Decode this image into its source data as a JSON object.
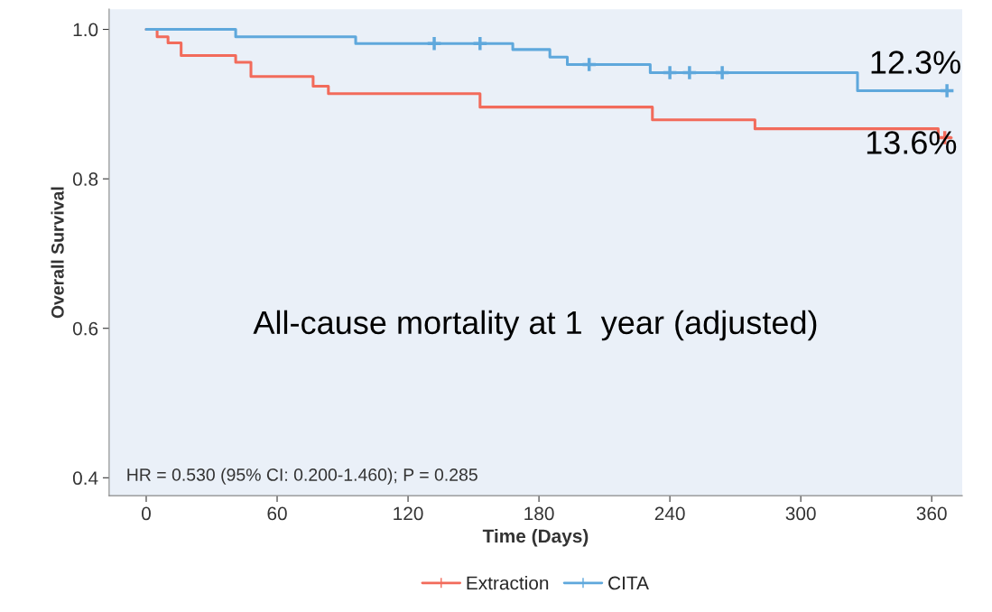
{
  "chart_data": {
    "type": "step",
    "xlabel": "Time (Days)",
    "ylabel": "Overall Survival",
    "xlim": [
      -17,
      374
    ],
    "ylim": [
      0.376,
      1.027
    ],
    "xticks": [
      0,
      60,
      120,
      180,
      240,
      300,
      360
    ],
    "yticks": [
      {
        "value": 0.4,
        "label": "0.4"
      },
      {
        "value": 0.6,
        "label": "0.6"
      },
      {
        "value": 0.8,
        "label": "0.8"
      },
      {
        "value": 1.0,
        "label": "1.0"
      }
    ],
    "grid": false,
    "legend": "bottom",
    "line_style": "solid",
    "series": [
      {
        "name": "Extraction",
        "color": "#f26b5b",
        "x": [
          0,
          5,
          10,
          16,
          41,
          48,
          76.5,
          83.5,
          153,
          232,
          279,
          363,
          369
        ],
        "values": [
          1.0,
          0.99,
          0.982,
          0.965,
          0.956,
          0.937,
          0.924,
          0.914,
          0.896,
          0.879,
          0.867,
          0.855,
          0.855
        ]
      },
      {
        "name": "CITA",
        "color": "#5fa8dc",
        "x": [
          0,
          41,
          96,
          168,
          185,
          193,
          231,
          326,
          367
        ],
        "values": [
          1.0,
          0.99,
          0.981,
          0.973,
          0.963,
          0.953,
          0.942,
          0.918,
          0.918
        ]
      },
      {
        "type": "scatter",
        "color": "#f26b5b",
        "marker": "cross",
        "x": [
          366
        ],
        "values": [
          0.855
        ]
      },
      {
        "type": "scatter",
        "color": "#5fa8dc",
        "marker": "cross",
        "x": [
          132,
          153,
          203,
          240,
          249,
          264,
          367
        ],
        "values": [
          0.981,
          0.981,
          0.953,
          0.942,
          0.942,
          0.942,
          0.918
        ]
      }
    ],
    "annotations": [
      "12.3%",
      "13.6%",
      "All-cause mortality at 1  year (adjusted)",
      "HR = 0.530 (95% CI: 0.200-1.460); P = 0.285"
    ]
  }
}
